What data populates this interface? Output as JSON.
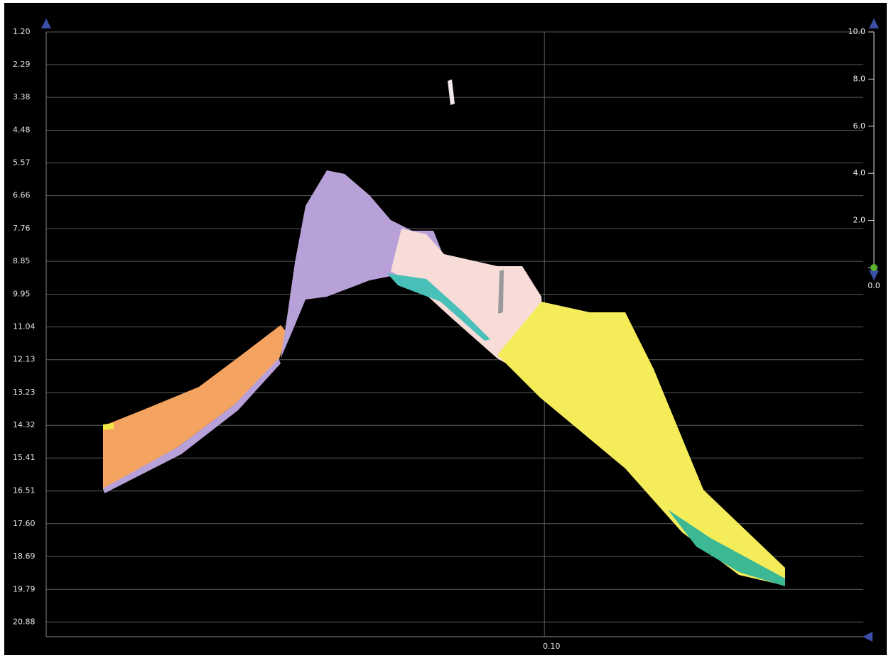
{
  "chart_data": {
    "type": "scatter",
    "xlim": [
      0,
      0.164
    ],
    "xticks": [
      {
        "value": 0.1,
        "label": "0.10"
      }
    ],
    "ylim": [
      1.2,
      21.37
    ],
    "yticks": [
      {
        "value": 1.2,
        "label": "1.20"
      },
      2.29,
      3.38,
      {
        "value": 4.48,
        "label": "4.48"
      },
      5.57,
      6.66,
      7.76,
      8.85,
      9.95,
      11.04,
      12.13,
      13.23,
      14.32,
      15.41,
      16.51,
      {
        "value": 17.6,
        "label": "17.60"
      },
      18.69,
      19.79,
      20.88
    ],
    "y2lim": [
      0,
      10
    ],
    "y2ticks": [
      {
        "value": 10,
        "label": "10.0"
      },
      {
        "value": 8,
        "label": "8.0"
      },
      {
        "value": 6,
        "label": "6.0"
      },
      {
        "value": 4,
        "label": "4.0"
      },
      {
        "value": 2,
        "label": "2.0"
      },
      {
        "value": 0,
        "label": "0.0"
      }
    ],
    "grid": true
  }
}
